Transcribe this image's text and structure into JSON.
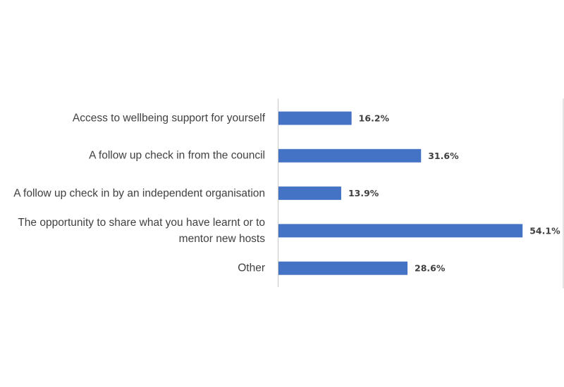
{
  "chart_data": {
    "type": "hbar",
    "categories": [
      "Access to wellbeing support for yourself",
      "A follow up check in from the council",
      "A follow up check in by an independent organisation",
      "The opportunity to share what you have learnt or to mentor new hosts",
      "Other"
    ],
    "values": [
      16.2,
      31.6,
      13.9,
      54.1,
      28.6
    ],
    "value_labels": [
      "16.2%",
      "31.6%",
      "13.9%",
      "54.1%",
      "28.6%"
    ],
    "color": "#4472c4"
  }
}
